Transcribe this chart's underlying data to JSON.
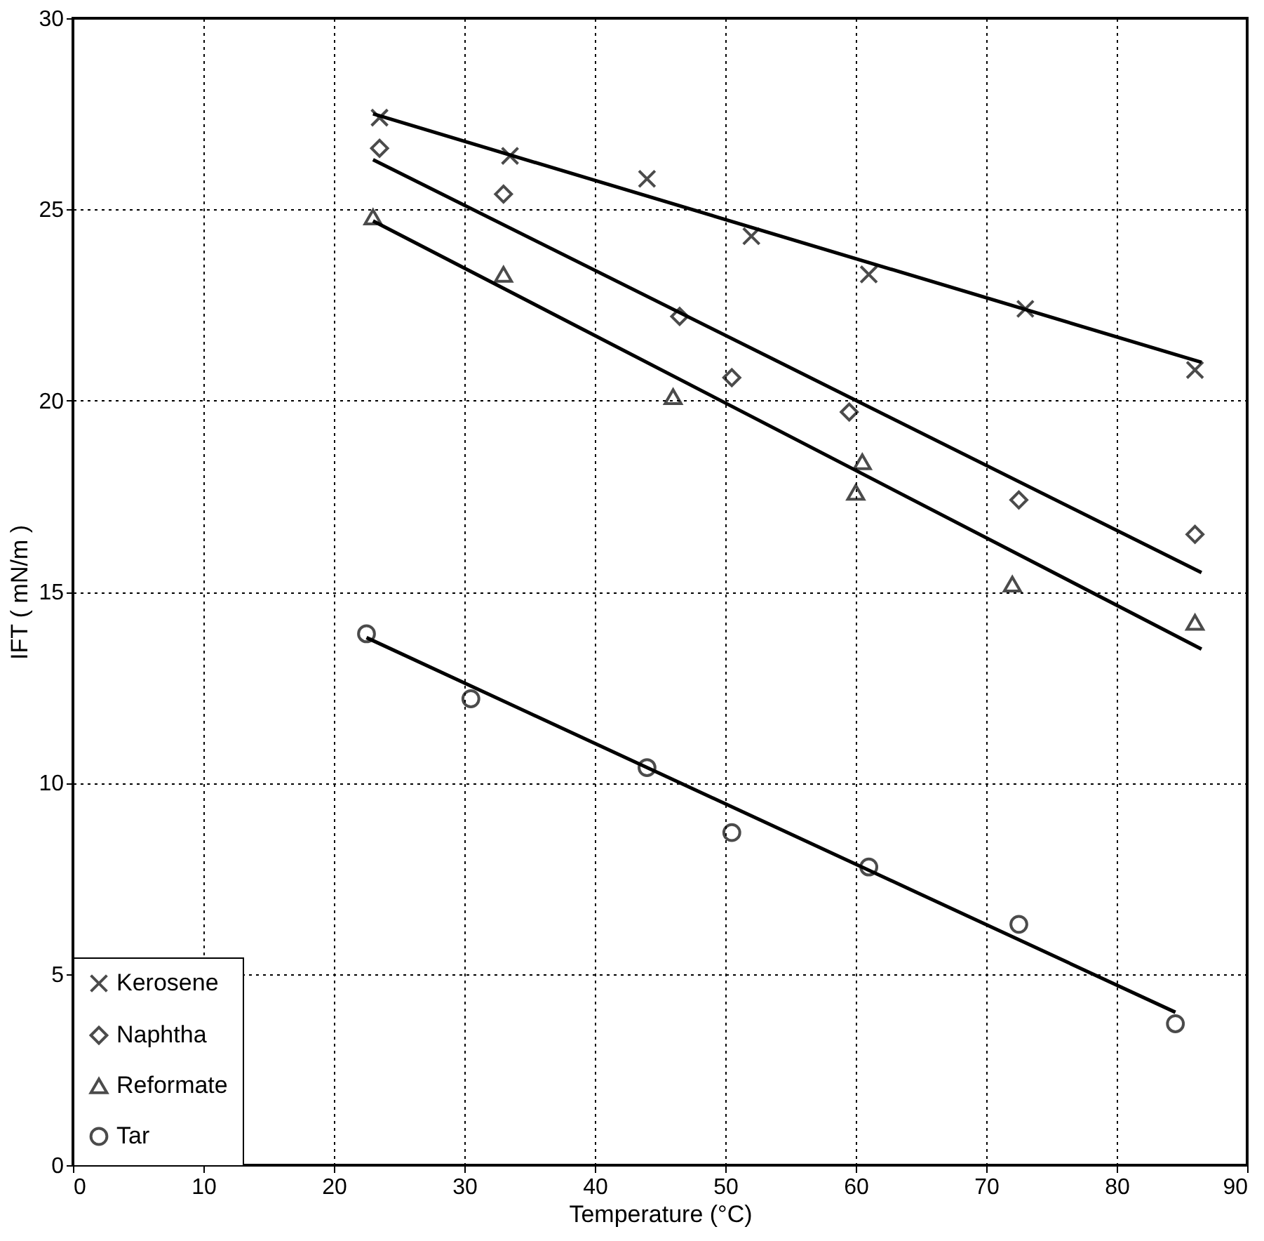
{
  "chart_data": {
    "type": "scatter",
    "xlabel": "Temperature (°C)",
    "ylabel": "IFT ( mN/m )",
    "xlim": [
      0,
      90
    ],
    "xticks": [
      0,
      10,
      20,
      30,
      40,
      50,
      60,
      70,
      80,
      90
    ],
    "ylim": [
      0,
      30
    ],
    "yticks": [
      0,
      5,
      10,
      15,
      20,
      25,
      30
    ],
    "grid": true,
    "legend": "bottom left",
    "series": [
      {
        "name": "Kerosene",
        "color": "#000000",
        "marker": "cross",
        "x": [
          23.5,
          33.5,
          44,
          52,
          61,
          73,
          86
        ],
        "values": [
          27.4,
          26.4,
          25.8,
          24.3,
          23.3,
          22.4,
          20.8
        ]
      },
      {
        "name": "Naphtha",
        "color": "#000000",
        "marker": "diamond",
        "x": [
          23.5,
          33,
          46.5,
          50.5,
          59.5,
          72.5,
          86
        ],
        "values": [
          26.6,
          25.4,
          22.2,
          20.6,
          19.7,
          17.4,
          16.5
        ]
      },
      {
        "name": "Reformate",
        "color": "#000000",
        "marker": "triangle",
        "x": [
          23,
          33,
          46,
          60.5,
          60,
          72,
          86
        ],
        "values": [
          24.8,
          23.3,
          20.1,
          18.4,
          17.6,
          15.2,
          14.2
        ]
      },
      {
        "name": "Tar",
        "color": "#000000",
        "marker": "circle",
        "x": [
          22.5,
          30.5,
          44,
          50.5,
          61,
          72.5,
          84.5
        ],
        "values": [
          13.9,
          12.2,
          10.4,
          8.7,
          7.8,
          6.3,
          3.7
        ]
      },
      {
        "type": "line",
        "color": "#000000",
        "line_style": "solid",
        "x": [
          23,
          86.5
        ],
        "values": [
          27.5,
          21.0
        ]
      },
      {
        "type": "line",
        "color": "#000000",
        "line_style": "solid",
        "x": [
          23,
          86.5
        ],
        "values": [
          26.3,
          15.5
        ]
      },
      {
        "type": "line",
        "color": "#000000",
        "line_style": "solid",
        "x": [
          23,
          86.5
        ],
        "values": [
          24.7,
          13.5
        ]
      },
      {
        "type": "line",
        "color": "#000000",
        "line_style": "solid",
        "x": [
          22.5,
          84.5
        ],
        "values": [
          13.8,
          4.0
        ]
      }
    ]
  }
}
